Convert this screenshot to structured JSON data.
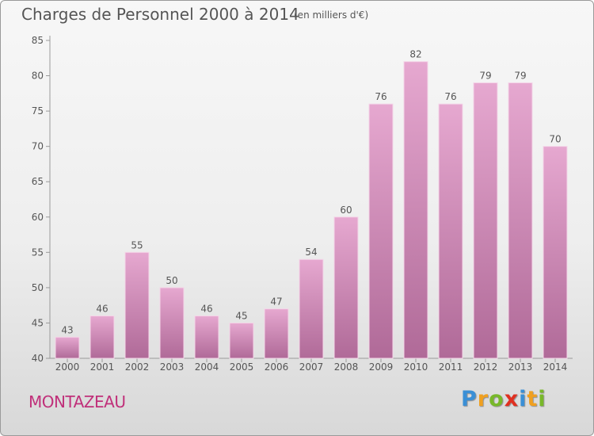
{
  "header": {
    "title": "Charges de Personnel 2000 à 2014",
    "subtitle": "(en milliers d'€)"
  },
  "footer": {
    "commune": "MONTAZEAU",
    "logo_letters": [
      "P",
      "r",
      "o",
      "x",
      "i",
      "t",
      "i"
    ],
    "logo_colors": [
      "#3a8fd6",
      "#f0a020",
      "#78b82a",
      "#e03020",
      "#3a8fd6",
      "#f0a020",
      "#78b82a"
    ]
  },
  "colors": {
    "bar_top": "#e6a8d0",
    "bar_bottom": "#b06a98",
    "commune_text": "#c0307a"
  },
  "chart_data": {
    "type": "bar",
    "categories": [
      "2000",
      "2001",
      "2002",
      "2003",
      "2004",
      "2005",
      "2006",
      "2007",
      "2008",
      "2009",
      "2010",
      "2011",
      "2012",
      "2013",
      "2014"
    ],
    "values": [
      43,
      46,
      55,
      50,
      46,
      45,
      47,
      54,
      60,
      76,
      82,
      76,
      79,
      79,
      70
    ],
    "ylim": [
      40,
      85
    ],
    "yticks": [
      40,
      45,
      50,
      55,
      60,
      65,
      70,
      75,
      80,
      85
    ],
    "grid": false
  }
}
